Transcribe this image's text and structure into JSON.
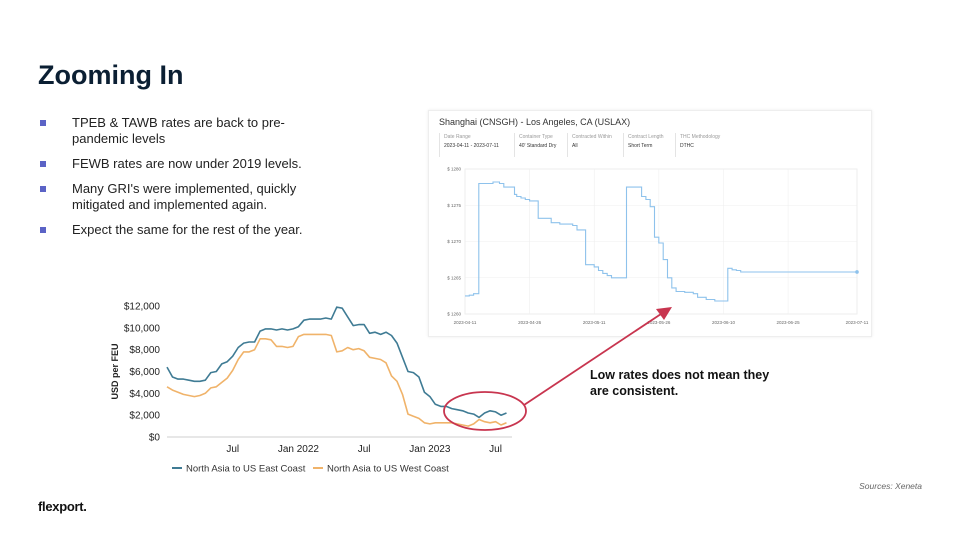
{
  "slide": {
    "title": "Zooming In",
    "bullets": [
      "TPEB & TAWB rates are back to pre-pandemic levels",
      "FEWB rates are now under 2019 levels.",
      "Many GRI's were implemented, quickly mitigated and implemented again.",
      "Expect the same for the rest of the year."
    ],
    "annotation": "Low rates does not mean they are consistent.",
    "sources": "Sources: Xeneta",
    "logo_text": "flexport."
  },
  "colors": {
    "east": "#3f7b94",
    "west": "#f0b36a",
    "inset_line": "#8ec2ec",
    "highlight": "#c8354f",
    "bullet": "#5b63c6"
  },
  "chart_data": [
    {
      "type": "line",
      "title": "",
      "xlabel": "",
      "ylabel": "USD per FEU",
      "x_ticks": [
        {
          "t": 6,
          "label": "Jul"
        },
        {
          "t": 12,
          "label": "Jan 2022"
        },
        {
          "t": 18,
          "label": "Jul"
        },
        {
          "t": 24,
          "label": "Jan 2023"
        },
        {
          "t": 30,
          "label": "Jul"
        }
      ],
      "y_ticks": [
        {
          "v": 0,
          "label": "$0"
        },
        {
          "v": 2000,
          "label": "$2,000"
        },
        {
          "v": 4000,
          "label": "$4,000"
        },
        {
          "v": 6000,
          "label": "$6,000"
        },
        {
          "v": 8000,
          "label": "$8,000"
        },
        {
          "v": 10000,
          "label": "$10,000"
        },
        {
          "v": 12000,
          "label": "$12,000"
        }
      ],
      "ylim": [
        0,
        12000
      ],
      "xlim": [
        0,
        31.5
      ],
      "legend_position": "bottom",
      "series": [
        {
          "name": "North Asia to US East Coast",
          "points": [
            [
              0,
              6400
            ],
            [
              0.5,
              5500
            ],
            [
              1,
              5300
            ],
            [
              1.5,
              5300
            ],
            [
              2,
              5200
            ],
            [
              2.5,
              5100
            ],
            [
              3,
              5100
            ],
            [
              3.5,
              5200
            ],
            [
              4,
              5900
            ],
            [
              4.5,
              6000
            ],
            [
              5,
              6700
            ],
            [
              5.5,
              6900
            ],
            [
              6,
              7400
            ],
            [
              6.5,
              8200
            ],
            [
              7,
              8600
            ],
            [
              7.5,
              8700
            ],
            [
              8,
              8700
            ],
            [
              8.5,
              9700
            ],
            [
              9,
              9900
            ],
            [
              9.5,
              9900
            ],
            [
              10,
              9800
            ],
            [
              10.5,
              9900
            ],
            [
              11,
              9800
            ],
            [
              11.5,
              9900
            ],
            [
              12,
              10100
            ],
            [
              12.5,
              10700
            ],
            [
              13,
              10800
            ],
            [
              13.5,
              10800
            ],
            [
              14,
              10800
            ],
            [
              14.5,
              10900
            ],
            [
              15,
              10800
            ],
            [
              15.5,
              11900
            ],
            [
              16,
              11800
            ],
            [
              16.5,
              11000
            ],
            [
              17,
              10200
            ],
            [
              17.5,
              10300
            ],
            [
              18,
              10300
            ],
            [
              18.5,
              9500
            ],
            [
              19,
              9600
            ],
            [
              19.5,
              9400
            ],
            [
              20,
              9600
            ],
            [
              20.5,
              9300
            ],
            [
              21,
              8600
            ],
            [
              21.5,
              7300
            ],
            [
              22,
              6000
            ],
            [
              22.5,
              5900
            ],
            [
              23,
              5500
            ],
            [
              23.5,
              4100
            ],
            [
              24,
              3700
            ],
            [
              24.5,
              3000
            ],
            [
              25,
              2800
            ],
            [
              25.5,
              2800
            ],
            [
              26,
              2600
            ],
            [
              26.5,
              2500
            ],
            [
              27,
              2400
            ],
            [
              27.5,
              2200
            ],
            [
              28,
              2100
            ],
            [
              28.5,
              1800
            ],
            [
              29,
              2200
            ],
            [
              29.5,
              2400
            ],
            [
              30,
              2300
            ],
            [
              30.5,
              2000
            ],
            [
              31,
              2200
            ]
          ]
        },
        {
          "name": "North Asia to US West Coast",
          "points": [
            [
              0,
              4600
            ],
            [
              0.5,
              4300
            ],
            [
              1,
              4100
            ],
            [
              1.5,
              3900
            ],
            [
              2,
              3800
            ],
            [
              2.5,
              3700
            ],
            [
              3,
              3800
            ],
            [
              3.5,
              4000
            ],
            [
              4,
              4500
            ],
            [
              4.5,
              4600
            ],
            [
              5,
              5000
            ],
            [
              5.5,
              5400
            ],
            [
              6,
              6100
            ],
            [
              6.5,
              7100
            ],
            [
              7,
              7800
            ],
            [
              7.5,
              7800
            ],
            [
              8,
              8000
            ],
            [
              8.5,
              9000
            ],
            [
              9,
              9000
            ],
            [
              9.5,
              8900
            ],
            [
              10,
              8300
            ],
            [
              10.5,
              8300
            ],
            [
              11,
              8200
            ],
            [
              11.5,
              8300
            ],
            [
              12,
              9200
            ],
            [
              12.5,
              9400
            ],
            [
              13,
              9400
            ],
            [
              13.5,
              9400
            ],
            [
              14,
              9400
            ],
            [
              14.5,
              9400
            ],
            [
              15,
              9300
            ],
            [
              15.5,
              7800
            ],
            [
              16,
              7900
            ],
            [
              16.5,
              8200
            ],
            [
              17,
              8000
            ],
            [
              17.5,
              8100
            ],
            [
              18,
              7900
            ],
            [
              18.5,
              7300
            ],
            [
              19,
              7200
            ],
            [
              19.5,
              7100
            ],
            [
              20,
              6800
            ],
            [
              20.5,
              5600
            ],
            [
              21,
              5100
            ],
            [
              21.5,
              3900
            ],
            [
              22,
              2100
            ],
            [
              22.5,
              1900
            ],
            [
              23,
              1700
            ],
            [
              23.5,
              1300
            ],
            [
              24,
              1200
            ],
            [
              24.5,
              1300
            ],
            [
              25,
              1300
            ],
            [
              25.5,
              1300
            ],
            [
              26,
              1300
            ],
            [
              26.5,
              1200
            ],
            [
              27,
              1100
            ],
            [
              27.5,
              1000
            ],
            [
              28,
              1200
            ],
            [
              28.5,
              1600
            ],
            [
              29,
              1400
            ],
            [
              29.5,
              1300
            ],
            [
              30,
              1400
            ],
            [
              30.5,
              1100
            ],
            [
              31,
              1300
            ]
          ]
        }
      ]
    },
    {
      "type": "line",
      "title": "Shanghai (CNSGH) - Los Angeles, CA (USLAX)",
      "filters": [
        {
          "label": "Date Range",
          "value": "2023-04-11 - 2023-07-11"
        },
        {
          "label": "Container Type",
          "value": "40' Standard Dry"
        },
        {
          "label": "Contracted Within",
          "value": "All"
        },
        {
          "label": "Contract Length",
          "value": "Short Term"
        },
        {
          "label": "THC Methodology",
          "value": "DTHC"
        }
      ],
      "y_ticks": [
        {
          "v": 1260,
          "label": "$ 1260"
        },
        {
          "v": 1265,
          "label": "$ 1265"
        },
        {
          "v": 1270,
          "label": "$ 1270"
        },
        {
          "v": 1275,
          "label": "$ 1275"
        },
        {
          "v": 1280,
          "label": "$ 1280"
        }
      ],
      "x_ticks": [
        {
          "d": 0,
          "label": "2023-04-11"
        },
        {
          "d": 15,
          "label": "2023-04-26"
        },
        {
          "d": 30,
          "label": "2023-05-11"
        },
        {
          "d": 45,
          "label": "2023-05-26"
        },
        {
          "d": 60,
          "label": "2023-06-10"
        },
        {
          "d": 75,
          "label": "2023-06-25"
        },
        {
          "d": 91,
          "label": "2023-07-11"
        }
      ],
      "ylim": [
        1260,
        1280
      ],
      "xlim": [
        0,
        91
      ],
      "points": [
        [
          0,
          1262.5
        ],
        [
          1,
          1262.6
        ],
        [
          2,
          1262.8
        ],
        [
          3,
          1262.8
        ],
        [
          3.2,
          1278.0
        ],
        [
          6,
          1278.0
        ],
        [
          6.5,
          1278.2
        ],
        [
          8,
          1278.0
        ],
        [
          9,
          1277.5
        ],
        [
          11,
          1277.5
        ],
        [
          11.5,
          1276.5
        ],
        [
          12,
          1276.2
        ],
        [
          13,
          1276.0
        ],
        [
          14,
          1275.8
        ],
        [
          15,
          1275.6
        ],
        [
          16,
          1275.6
        ],
        [
          17,
          1273.2
        ],
        [
          19,
          1273.2
        ],
        [
          20,
          1272.6
        ],
        [
          22,
          1272.4
        ],
        [
          24,
          1272.4
        ],
        [
          25,
          1272.2
        ],
        [
          26,
          1271.6
        ],
        [
          27,
          1271.6
        ],
        [
          28,
          1266.8
        ],
        [
          30,
          1266.5
        ],
        [
          31,
          1266.0
        ],
        [
          32,
          1265.6
        ],
        [
          33,
          1265.3
        ],
        [
          34,
          1265.0
        ],
        [
          37,
          1265.0
        ],
        [
          37.5,
          1277.5
        ],
        [
          40,
          1277.5
        ],
        [
          41,
          1276.2
        ],
        [
          42,
          1275.8
        ],
        [
          43,
          1274.8
        ],
        [
          44,
          1270.6
        ],
        [
          45,
          1269.8
        ],
        [
          46,
          1267.5
        ],
        [
          47,
          1265.0
        ],
        [
          48,
          1263.6
        ],
        [
          49,
          1263.1
        ],
        [
          51,
          1263.0
        ],
        [
          53,
          1262.8
        ],
        [
          54,
          1262.3
        ],
        [
          56,
          1262.0
        ],
        [
          58,
          1261.8
        ],
        [
          60,
          1261.8
        ],
        [
          61,
          1266.3
        ],
        [
          62,
          1266.1
        ],
        [
          63,
          1266.0
        ],
        [
          64,
          1265.8
        ],
        [
          65,
          1265.8
        ],
        [
          91,
          1265.8
        ]
      ]
    }
  ]
}
